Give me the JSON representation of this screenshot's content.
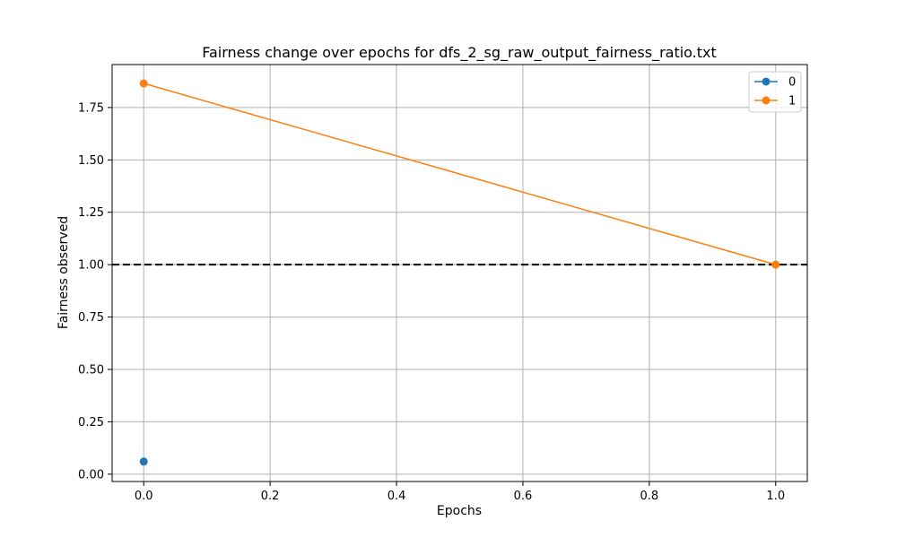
{
  "chart_data": {
    "type": "line",
    "title": "Fairness change over epochs for dfs_2_sg_raw_output_fairness_ratio.txt",
    "xlabel": "Epochs",
    "ylabel": "Fairness observed",
    "xlim": [
      -0.05,
      1.05
    ],
    "ylim": [
      -0.035,
      1.955
    ],
    "x_ticks": [
      0.0,
      0.2,
      0.4,
      0.6,
      0.8,
      1.0
    ],
    "x_tick_labels": [
      "0.0",
      "0.2",
      "0.4",
      "0.6",
      "0.8",
      "1.0"
    ],
    "y_ticks": [
      0.0,
      0.25,
      0.5,
      0.75,
      1.0,
      1.25,
      1.5,
      1.75
    ],
    "y_tick_labels": [
      "0.00",
      "0.25",
      "0.50",
      "0.75",
      "1.00",
      "1.25",
      "1.50",
      "1.75"
    ],
    "grid": true,
    "legend_position": "top-right",
    "reference_line": {
      "y": 1.0,
      "style": "dashed",
      "color": "#000000"
    },
    "series": [
      {
        "name": "0",
        "color": "#1f77b4",
        "points": [
          {
            "x": 0.0,
            "y": 0.06
          }
        ]
      },
      {
        "name": "1",
        "color": "#ff7f0e",
        "points": [
          {
            "x": 0.0,
            "y": 1.865
          },
          {
            "x": 1.0,
            "y": 1.0
          }
        ]
      }
    ]
  }
}
